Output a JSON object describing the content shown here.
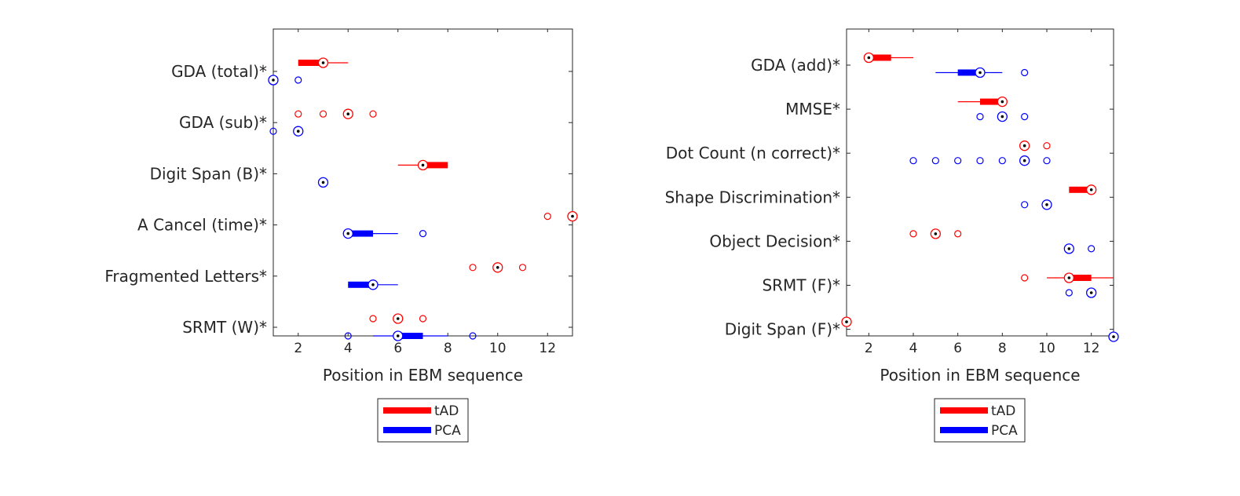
{
  "chart_data": [
    {
      "type": "boxplot",
      "xlabel": "Position in EBM sequence",
      "xlim": [
        1,
        13
      ],
      "xticks": [
        2,
        4,
        6,
        8,
        10,
        12
      ],
      "grid": false,
      "legend_position": "below",
      "categories": [
        "GDA (total)*",
        "GDA (sub)*",
        "Digit Span (B)*",
        "A Cancel (time)*",
        "Fragmented Letters*",
        "SRMT (W)*"
      ],
      "series": [
        {
          "name": "tAD",
          "color": "#ff0000",
          "items": [
            {
              "median": 3,
              "q1": 2,
              "q3": 3,
              "whisker_low": 2,
              "whisker_high": 4,
              "outliers": []
            },
            {
              "median": 4,
              "q1": null,
              "q3": null,
              "whisker_low": null,
              "whisker_high": null,
              "outliers": [
                2,
                3,
                5
              ]
            },
            {
              "median": 7,
              "q1": 7,
              "q3": 8,
              "whisker_low": 6,
              "whisker_high": 8,
              "outliers": []
            },
            {
              "median": 13,
              "q1": null,
              "q3": null,
              "whisker_low": null,
              "whisker_high": null,
              "outliers": [
                12
              ]
            },
            {
              "median": 10,
              "q1": null,
              "q3": null,
              "whisker_low": null,
              "whisker_high": null,
              "outliers": [
                9,
                11
              ]
            },
            {
              "median": 6,
              "q1": null,
              "q3": null,
              "whisker_low": null,
              "whisker_high": null,
              "outliers": [
                5,
                7
              ]
            }
          ]
        },
        {
          "name": "PCA",
          "color": "#0000ff",
          "items": [
            {
              "median": 1,
              "q1": null,
              "q3": null,
              "whisker_low": null,
              "whisker_high": null,
              "outliers": [
                2
              ]
            },
            {
              "median": 2,
              "q1": null,
              "q3": null,
              "whisker_low": null,
              "whisker_high": null,
              "outliers": [
                1
              ]
            },
            {
              "median": 3,
              "q1": null,
              "q3": null,
              "whisker_low": null,
              "whisker_high": null,
              "outliers": []
            },
            {
              "median": 4,
              "q1": 4,
              "q3": 5,
              "whisker_low": 4,
              "whisker_high": 6,
              "outliers": [
                7
              ]
            },
            {
              "median": 5,
              "q1": 4,
              "q3": 5,
              "whisker_low": 4,
              "whisker_high": 6,
              "outliers": []
            },
            {
              "median": 6,
              "q1": 6,
              "q3": 7,
              "whisker_low": 5,
              "whisker_high": 8,
              "outliers": [
                4,
                9
              ]
            }
          ]
        }
      ]
    },
    {
      "type": "boxplot",
      "xlabel": "Position in EBM sequence",
      "xlim": [
        1,
        13
      ],
      "xticks": [
        2,
        4,
        6,
        8,
        10,
        12
      ],
      "grid": false,
      "legend_position": "below",
      "categories": [
        "GDA (add)*",
        "MMSE*",
        "Dot Count (n correct)*",
        "Shape Discrimination*",
        "Object Decision*",
        "SRMT (F)*",
        "Digit Span (F)*"
      ],
      "series": [
        {
          "name": "tAD",
          "color": "#ff0000",
          "items": [
            {
              "median": 2,
              "q1": 2,
              "q3": 3,
              "whisker_low": 2,
              "whisker_high": 4,
              "outliers": []
            },
            {
              "median": 8,
              "q1": 7,
              "q3": 8,
              "whisker_low": 6,
              "whisker_high": 8,
              "outliers": []
            },
            {
              "median": 9,
              "q1": null,
              "q3": null,
              "whisker_low": null,
              "whisker_high": null,
              "outliers": [
                10
              ]
            },
            {
              "median": 12,
              "q1": 11,
              "q3": 12,
              "whisker_low": 11,
              "whisker_high": 12,
              "outliers": []
            },
            {
              "median": 5,
              "q1": null,
              "q3": null,
              "whisker_low": null,
              "whisker_high": null,
              "outliers": [
                4,
                6
              ]
            },
            {
              "median": 11,
              "q1": 11,
              "q3": 12,
              "whisker_low": 10,
              "whisker_high": 13,
              "outliers": [
                9
              ]
            },
            {
              "median": 1,
              "q1": null,
              "q3": null,
              "whisker_low": null,
              "whisker_high": null,
              "outliers": []
            }
          ]
        },
        {
          "name": "PCA",
          "color": "#0000ff",
          "items": [
            {
              "median": 7,
              "q1": 6,
              "q3": 7,
              "whisker_low": 5,
              "whisker_high": 8,
              "outliers": [
                9
              ]
            },
            {
              "median": 8,
              "q1": null,
              "q3": null,
              "whisker_low": null,
              "whisker_high": null,
              "outliers": [
                7,
                9
              ]
            },
            {
              "median": 9,
              "q1": null,
              "q3": null,
              "whisker_low": null,
              "whisker_high": null,
              "outliers": [
                4,
                5,
                6,
                7,
                8,
                10
              ]
            },
            {
              "median": 10,
              "q1": null,
              "q3": null,
              "whisker_low": null,
              "whisker_high": null,
              "outliers": [
                9
              ]
            },
            {
              "median": 11,
              "q1": null,
              "q3": null,
              "whisker_low": null,
              "whisker_high": null,
              "outliers": [
                12
              ]
            },
            {
              "median": 12,
              "q1": null,
              "q3": null,
              "whisker_low": null,
              "whisker_high": null,
              "outliers": [
                11
              ]
            },
            {
              "median": 13,
              "q1": null,
              "q3": null,
              "whisker_low": null,
              "whisker_high": null,
              "outliers": []
            }
          ]
        }
      ]
    }
  ]
}
